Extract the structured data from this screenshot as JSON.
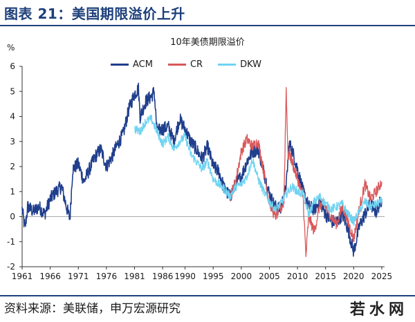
{
  "header": {
    "figure_title": "图表 21：美国期限溢价上升"
  },
  "footer": {
    "source": "资料来源：美联储，申万宏源研究",
    "watermark": "若水网"
  },
  "colors": {
    "ACM": "#1f3e8c",
    "CR": "#d9575a",
    "DKW": "#6fd3f2",
    "rule": "#1d3f7a"
  },
  "chart_data": {
    "type": "line",
    "title": "10年美债期限溢价",
    "ylabel": "%",
    "xlabel": "",
    "xlim": [
      1961,
      2025.5
    ],
    "ylim": [
      -2,
      6
    ],
    "yticks": [
      -2,
      -1,
      0,
      1,
      2,
      3,
      4,
      5,
      6
    ],
    "xticks": [
      1961,
      1966,
      1971,
      1976,
      1981,
      1986,
      1990,
      1995,
      2000,
      2005,
      2010,
      2015,
      2020,
      2025
    ],
    "legend": [
      "ACM",
      "CR",
      "DKW"
    ],
    "series": [
      {
        "name": "ACM",
        "x": [
          1961,
          1961.5,
          1962,
          1963,
          1964,
          1965,
          1966,
          1967,
          1968,
          1969,
          1969.5,
          1970,
          1971,
          1972,
          1973,
          1974,
          1975,
          1976,
          1977,
          1978,
          1979,
          1980,
          1981,
          1981.7,
          1982,
          1983,
          1984,
          1984.5,
          1985,
          1986,
          1987,
          1988,
          1989,
          1990,
          1991,
          1992,
          1993,
          1994,
          1995,
          1996,
          1997,
          1998,
          1999,
          2000,
          2001,
          2002,
          2003,
          2004,
          2005,
          2006,
          2007,
          2008,
          2008.5,
          2009,
          2010,
          2011,
          2012,
          2013,
          2014,
          2015,
          2016,
          2017,
          2018,
          2019,
          2020,
          2020.5,
          2021,
          2022,
          2023,
          2024,
          2025
        ],
        "values": [
          0.3,
          -0.5,
          0.4,
          0.2,
          0.4,
          0.1,
          0.7,
          1.0,
          1.2,
          0.3,
          -0.1,
          1.9,
          2.1,
          1.4,
          1.9,
          2.4,
          2.7,
          2.0,
          2.4,
          2.9,
          3.3,
          4.3,
          4.9,
          5.1,
          4.0,
          4.6,
          4.8,
          5.0,
          3.4,
          3.5,
          3.6,
          3.0,
          3.9,
          3.5,
          3.0,
          2.7,
          2.3,
          2.8,
          2.0,
          1.8,
          1.1,
          0.8,
          1.3,
          1.6,
          2.2,
          2.6,
          2.7,
          1.8,
          0.9,
          0.4,
          0.3,
          1.2,
          2.9,
          2.7,
          1.9,
          1.0,
          0.4,
          0.3,
          0.6,
          0.1,
          -0.2,
          -0.2,
          0.1,
          -0.5,
          -1.4,
          -0.9,
          -0.4,
          0.1,
          0.5,
          0.2,
          0.7
        ]
      },
      {
        "name": "CR",
        "x": [
          1998,
          1999,
          2000,
          2001,
          2002,
          2003,
          2004,
          2005,
          2006,
          2007,
          2007.6,
          2008,
          2008.3,
          2008.6,
          2009,
          2010,
          2011,
          2011.5,
          2012,
          2013,
          2014,
          2015,
          2016,
          2017,
          2018,
          2019,
          2020,
          2021,
          2022,
          2023,
          2024,
          2025
        ],
        "values": [
          0.8,
          1.4,
          2.6,
          3.1,
          2.8,
          3.0,
          1.8,
          0.6,
          0.0,
          0.3,
          0.6,
          5.2,
          2.4,
          2.5,
          2.2,
          1.5,
          0.8,
          -1.6,
          0.0,
          -0.6,
          0.5,
          0.4,
          0.0,
          -0.3,
          0.4,
          -0.2,
          -0.9,
          0.3,
          1.3,
          0.7,
          1.0,
          1.4
        ]
      },
      {
        "name": "DKW",
        "x": [
          1981,
          1982,
          1983,
          1984,
          1985,
          1986,
          1987,
          1988,
          1989,
          1990,
          1991,
          1992,
          1993,
          1994,
          1995,
          1996,
          1997,
          1998,
          1999,
          2000,
          2001,
          2002,
          2003,
          2004,
          2005,
          2006,
          2007,
          2008,
          2009,
          2010,
          2011,
          2012,
          2013,
          2014,
          2015,
          2016,
          2017,
          2018,
          2019,
          2020,
          2021,
          2022,
          2023,
          2024,
          2025
        ],
        "values": [
          3.5,
          3.4,
          3.8,
          3.9,
          3.4,
          2.9,
          3.2,
          2.7,
          3.0,
          3.2,
          2.5,
          2.2,
          1.9,
          2.2,
          1.5,
          1.3,
          1.1,
          0.8,
          1.2,
          1.3,
          1.6,
          2.3,
          1.5,
          1.0,
          0.6,
          0.3,
          0.5,
          0.9,
          1.2,
          1.0,
          0.9,
          0.1,
          0.6,
          0.8,
          0.5,
          0.3,
          0.4,
          0.5,
          0.1,
          -0.2,
          0.2,
          0.6,
          0.4,
          0.5,
          0.6
        ]
      }
    ]
  }
}
